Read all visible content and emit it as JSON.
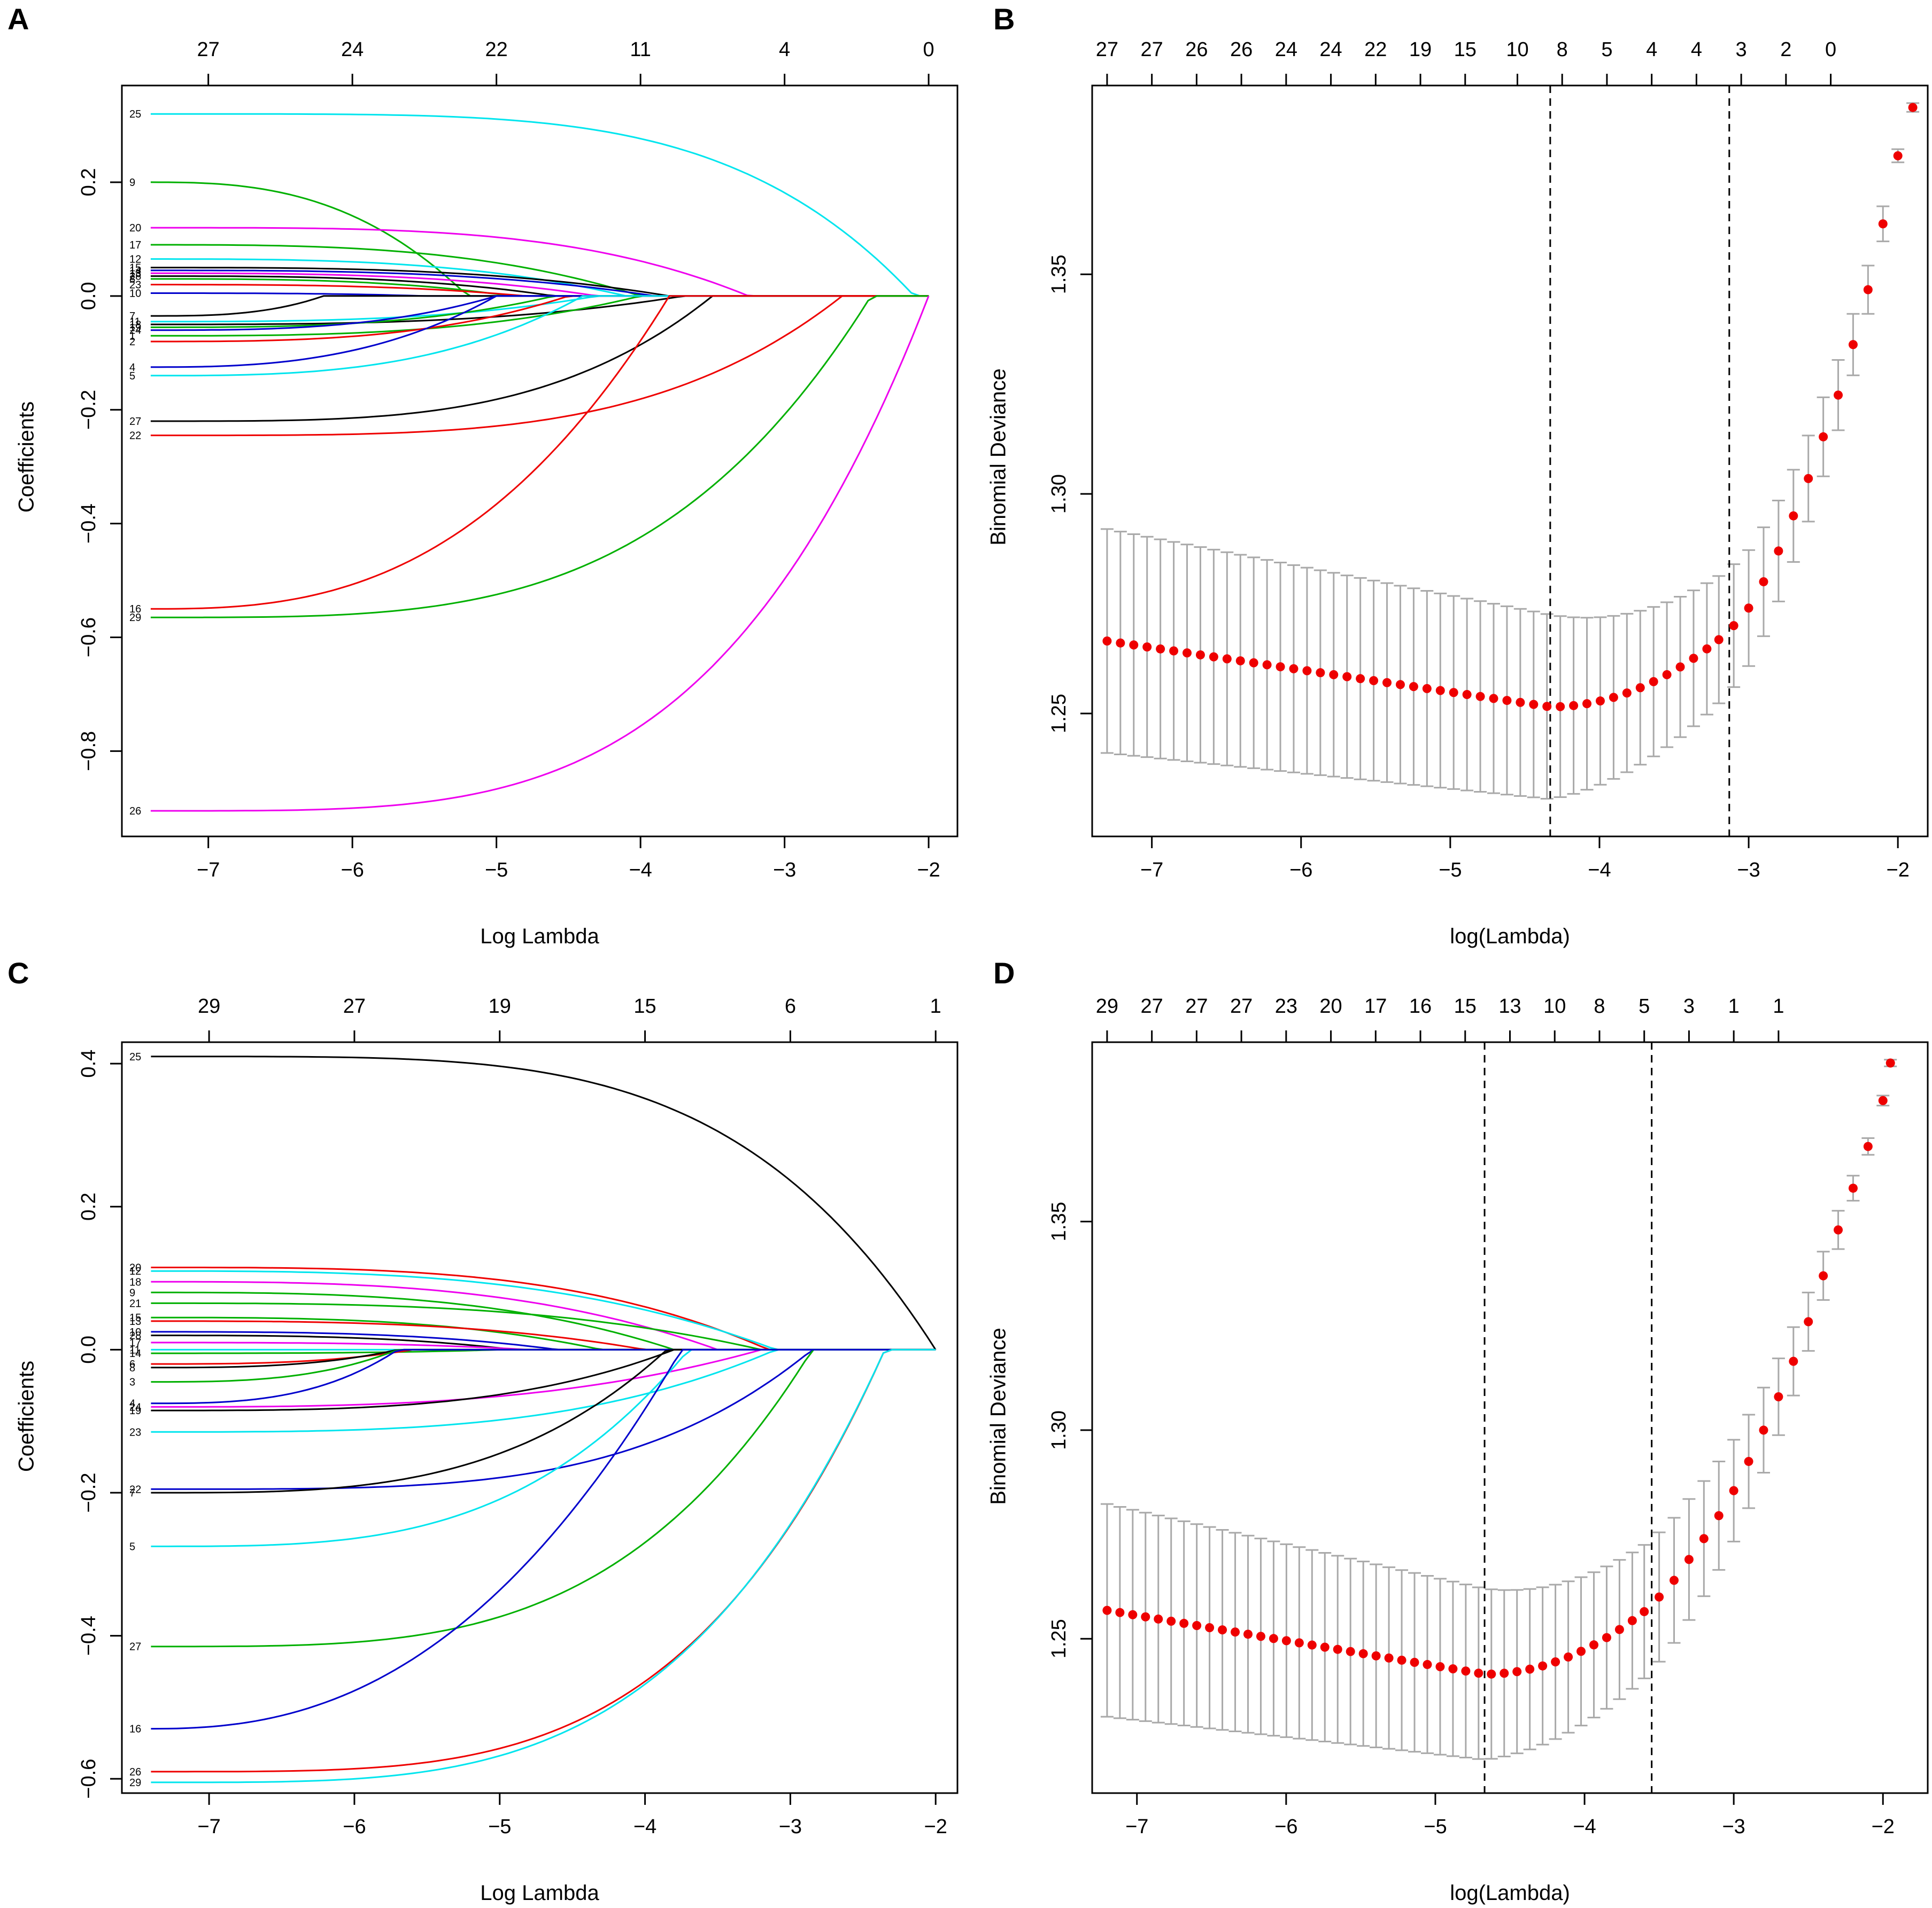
{
  "figure": {
    "background": "#ffffff"
  },
  "chart_data": [
    {
      "id": "A",
      "type": "line",
      "panel_label": "A",
      "xlabel": "Log Lambda",
      "ylabel": "Coefficients",
      "xlim": [
        -7.6,
        -1.8
      ],
      "ylim": [
        -0.95,
        0.37
      ],
      "x_ticks": [
        -7,
        -6,
        -5,
        -4,
        -3,
        -2
      ],
      "y_ticks": [
        -0.8,
        -0.6,
        -0.4,
        -0.2,
        0.0,
        0.2
      ],
      "y_tick_labels": [
        "−0.8",
        "−0.6",
        "−0.4",
        "−0.2",
        "0.0",
        "0.2"
      ],
      "top_axis": {
        "ticks": [
          -7,
          -6,
          -5,
          -4,
          -3,
          -2
        ],
        "labels": [
          "27",
          "24",
          "22",
          "11",
          "4",
          "0"
        ]
      },
      "x_start": -7.4,
      "series": [
        {
          "name": "25",
          "color": "#00e5ee",
          "start": 0.32,
          "zero_at": -2.1,
          "shape": 1.5
        },
        {
          "name": "9",
          "color": "#00b000",
          "start": 0.2,
          "zero_at": -5.2,
          "shape": 0.9
        },
        {
          "name": "20",
          "color": "#ee00ee",
          "start": 0.12,
          "zero_at": -3.25,
          "shape": 1.2
        },
        {
          "name": "17",
          "color": "#00b000",
          "start": 0.09,
          "zero_at": -4.0,
          "shape": 1.0
        },
        {
          "name": "12",
          "color": "#00e5ee",
          "start": 0.065,
          "zero_at": -4.1,
          "shape": 1.0
        },
        {
          "name": "15",
          "color": "#000000",
          "start": 0.05,
          "zero_at": -3.8,
          "shape": 1.0
        },
        {
          "name": "14",
          "color": "#0000cc",
          "start": 0.045,
          "zero_at": -3.9,
          "shape": 1.0
        },
        {
          "name": "13",
          "color": "#ee00ee",
          "start": 0.04,
          "zero_at": -4.3,
          "shape": 1.0
        },
        {
          "name": "28",
          "color": "#000000",
          "start": 0.035,
          "zero_at": -4.6,
          "shape": 1.0
        },
        {
          "name": "8",
          "color": "#00b000",
          "start": 0.03,
          "zero_at": -4.9,
          "shape": 1.0
        },
        {
          "name": "23",
          "color": "#ee0000",
          "start": 0.02,
          "zero_at": -4.8,
          "shape": 1.0
        },
        {
          "name": "10",
          "color": "#0000cc",
          "start": 0.005,
          "zero_at": -5.5,
          "shape": 1.0
        },
        {
          "name": "7",
          "color": "#000000",
          "start": -0.035,
          "zero_at": -6.2,
          "shape": 1.0
        },
        {
          "name": "11",
          "color": "#00e5ee",
          "start": -0.045,
          "zero_at": -4.3,
          "shape": 1.0
        },
        {
          "name": "18",
          "color": "#000000",
          "start": -0.05,
          "zero_at": -3.7,
          "shape": 1.0
        },
        {
          "name": "19",
          "color": "#00b000",
          "start": -0.055,
          "zero_at": -4.6,
          "shape": 1.0
        },
        {
          "name": "24",
          "color": "#0000cc",
          "start": -0.06,
          "zero_at": -5.0,
          "shape": 1.0
        },
        {
          "name": "1",
          "color": "#00b000",
          "start": -0.07,
          "zero_at": -4.0,
          "shape": 1.0
        },
        {
          "name": "2",
          "color": "#ee0000",
          "start": -0.08,
          "zero_at": -4.5,
          "shape": 1.0
        },
        {
          "name": "4",
          "color": "#0000cc",
          "start": -0.125,
          "zero_at": -5.0,
          "shape": 0.9
        },
        {
          "name": "5",
          "color": "#00e5ee",
          "start": -0.14,
          "zero_at": -4.4,
          "shape": 1.0
        },
        {
          "name": "27",
          "color": "#000000",
          "start": -0.22,
          "zero_at": -3.5,
          "shape": 1.2
        },
        {
          "name": "22",
          "color": "#ee0000",
          "start": -0.245,
          "zero_at": -2.6,
          "shape": 1.3
        },
        {
          "name": "16",
          "color": "#ee0000",
          "start": -0.55,
          "zero_at": -3.8,
          "shape": 0.9
        },
        {
          "name": "29",
          "color": "#00b000",
          "start": -0.565,
          "zero_at": -2.4,
          "shape": 1.2
        },
        {
          "name": "26",
          "color": "#ee00ee",
          "start": -0.905,
          "zero_at": -2.0,
          "shape": 1.3
        }
      ]
    },
    {
      "id": "B",
      "type": "scatter",
      "panel_label": "B",
      "xlabel": "log(Lambda)",
      "ylabel": "Binomial Deviance",
      "xlim": [
        -7.4,
        -1.8
      ],
      "ylim": [
        1.222,
        1.393
      ],
      "x_ticks": [
        -7,
        -6,
        -5,
        -4,
        -3,
        -2
      ],
      "y_ticks": [
        1.25,
        1.3,
        1.35
      ],
      "y_tick_labels": [
        "1.25",
        "1.30",
        "1.35"
      ],
      "top_axis": {
        "ticks": [
          -7.3,
          -7.0,
          -6.7,
          -6.4,
          -6.1,
          -5.8,
          -5.5,
          -5.2,
          -4.9,
          -4.55,
          -4.25,
          -3.95,
          -3.65,
          -3.35,
          -3.05,
          -2.75,
          -2.45
        ],
        "labels": [
          "27",
          "27",
          "26",
          "26",
          "24",
          "24",
          "22",
          "19",
          "15",
          "10",
          "8",
          "5",
          "4",
          "4",
          "3",
          "2",
          "0"
        ]
      },
      "lambda_min": -4.33,
      "lambda_1se": -3.13,
      "cv": {
        "x_start": -7.3,
        "x_end": -2.0,
        "n": 60,
        "mean_left": 1.2665,
        "mean_min": 1.2515,
        "sd_left": 0.0255,
        "sd_min": 0.021,
        "tail": [
          [
            -3.2,
            1.2668,
            0.0145
          ],
          [
            -3.1,
            1.27,
            0.014
          ],
          [
            -3.0,
            1.274,
            0.0132
          ],
          [
            -2.9,
            1.28,
            0.0124
          ],
          [
            -2.8,
            1.287,
            0.0115
          ],
          [
            -2.7,
            1.295,
            0.0105
          ],
          [
            -2.6,
            1.3035,
            0.0098
          ],
          [
            -2.5,
            1.313,
            0.009
          ],
          [
            -2.4,
            1.3225,
            0.008
          ],
          [
            -2.3,
            1.334,
            0.007
          ],
          [
            -2.2,
            1.3465,
            0.0055
          ],
          [
            -2.1,
            1.3615,
            0.004
          ],
          [
            -2.0,
            1.377,
            0.0015
          ],
          [
            -1.9,
            1.388,
            0.001
          ]
        ]
      }
    },
    {
      "id": "C",
      "type": "line",
      "panel_label": "C",
      "xlabel": "Log Lambda",
      "ylabel": "Coefficients",
      "xlim": [
        -7.6,
        -1.85
      ],
      "ylim": [
        -0.62,
        0.43
      ],
      "x_ticks": [
        -7,
        -6,
        -5,
        -4,
        -3,
        -2
      ],
      "y_ticks": [
        -0.6,
        -0.4,
        -0.2,
        0.0,
        0.2,
        0.4
      ],
      "y_tick_labels": [
        "−0.6",
        "−0.4",
        "−0.2",
        "0.0",
        "0.2",
        "0.4"
      ],
      "top_axis": {
        "ticks": [
          -7,
          -6,
          -5,
          -4,
          -3,
          -2
        ],
        "labels": [
          "29",
          "27",
          "19",
          "15",
          "6",
          "1"
        ]
      },
      "x_start": -7.4,
      "series": [
        {
          "name": "25",
          "color": "#000000",
          "start": 0.41,
          "zero_at": -2.0,
          "shape": 1.4
        },
        {
          "name": "20",
          "color": "#ee0000",
          "start": 0.115,
          "zero_at": -3.15,
          "shape": 1.1
        },
        {
          "name": "12",
          "color": "#00e5ee",
          "start": 0.11,
          "zero_at": -3.1,
          "shape": 1.0
        },
        {
          "name": "18",
          "color": "#ee00ee",
          "start": 0.095,
          "zero_at": -3.5,
          "shape": 1.0
        },
        {
          "name": "9",
          "color": "#00b000",
          "start": 0.08,
          "zero_at": -3.8,
          "shape": 1.0
        },
        {
          "name": "21",
          "color": "#00b000",
          "start": 0.065,
          "zero_at": -3.2,
          "shape": 1.0
        },
        {
          "name": "15",
          "color": "#00b000",
          "start": 0.045,
          "zero_at": -4.3,
          "shape": 1.0
        },
        {
          "name": "13",
          "color": "#ee0000",
          "start": 0.04,
          "zero_at": -4.0,
          "shape": 1.0
        },
        {
          "name": "10",
          "color": "#0000cc",
          "start": 0.025,
          "zero_at": -4.6,
          "shape": 1.0
        },
        {
          "name": "28",
          "color": "#000000",
          "start": 0.02,
          "zero_at": -4.9,
          "shape": 1.0
        },
        {
          "name": "17",
          "color": "#ee00ee",
          "start": 0.01,
          "zero_at": -4.8,
          "shape": 1.0
        },
        {
          "name": "11",
          "color": "#00e5ee",
          "start": 0.0,
          "zero_at": -4.5,
          "shape": 1.0
        },
        {
          "name": "14",
          "color": "#00b000",
          "start": -0.005,
          "zero_at": -5.0,
          "shape": 1.0
        },
        {
          "name": "6",
          "color": "#ee0000",
          "start": -0.02,
          "zero_at": -5.6,
          "shape": 1.0
        },
        {
          "name": "8",
          "color": "#000000",
          "start": -0.025,
          "zero_at": -5.7,
          "shape": 1.0
        },
        {
          "name": "3",
          "color": "#00b000",
          "start": -0.045,
          "zero_at": -5.7,
          "shape": 1.0
        },
        {
          "name": "4",
          "color": "#0000cc",
          "start": -0.075,
          "zero_at": -5.7,
          "shape": 1.0
        },
        {
          "name": "24",
          "color": "#ee00ee",
          "start": -0.08,
          "zero_at": -3.2,
          "shape": 1.0
        },
        {
          "name": "19",
          "color": "#000000",
          "start": -0.085,
          "zero_at": -3.8,
          "shape": 1.1
        },
        {
          "name": "23",
          "color": "#00e5ee",
          "start": -0.115,
          "zero_at": -3.1,
          "shape": 1.1
        },
        {
          "name": "22",
          "color": "#0000cc",
          "start": -0.195,
          "zero_at": -2.85,
          "shape": 1.3
        },
        {
          "name": "7",
          "color": "#000000",
          "start": -0.2,
          "zero_at": -3.85,
          "shape": 1.1
        },
        {
          "name": "5",
          "color": "#00e5ee",
          "start": -0.275,
          "zero_at": -3.7,
          "shape": 1.1
        },
        {
          "name": "27",
          "color": "#00b000",
          "start": -0.415,
          "zero_at": -2.85,
          "shape": 1.2
        },
        {
          "name": "16",
          "color": "#0000cc",
          "start": -0.53,
          "zero_at": -3.75,
          "shape": 0.8
        },
        {
          "name": "26",
          "color": "#ee0000",
          "start": -0.59,
          "zero_at": -2.35,
          "shape": 1.3
        },
        {
          "name": "29",
          "color": "#00e5ee",
          "start": -0.605,
          "zero_at": -2.35,
          "shape": 1.25
        }
      ]
    },
    {
      "id": "D",
      "type": "scatter",
      "panel_label": "D",
      "xlabel": "log(Lambda)",
      "ylabel": "Binomial Deviance",
      "xlim": [
        -7.3,
        -1.7
      ],
      "ylim": [
        1.213,
        1.393
      ],
      "x_ticks": [
        -7,
        -6,
        -5,
        -4,
        -3,
        -2
      ],
      "y_ticks": [
        1.25,
        1.3,
        1.35
      ],
      "y_tick_labels": [
        "1.25",
        "1.30",
        "1.35"
      ],
      "top_axis": {
        "ticks": [
          -7.2,
          -6.9,
          -6.6,
          -6.3,
          -6.0,
          -5.7,
          -5.4,
          -5.1,
          -4.8,
          -4.5,
          -4.2,
          -3.9,
          -3.6,
          -3.3,
          -3.0,
          -2.7
        ],
        "labels": [
          "29",
          "27",
          "27",
          "27",
          "23",
          "20",
          "17",
          "16",
          "15",
          "13",
          "10",
          "8",
          "5",
          "3",
          "1",
          "1"
        ]
      },
      "lambda_min": -4.67,
      "lambda_1se": -3.55,
      "cv": {
        "x_start": -7.2,
        "x_end": -1.98,
        "n": 60,
        "mean_left": 1.2568,
        "mean_min": 1.2415,
        "sd_left": 0.0255,
        "sd_min": 0.0205,
        "tail": [
          [
            -3.6,
            1.2565,
            0.016
          ],
          [
            -3.5,
            1.26,
            0.0155
          ],
          [
            -3.4,
            1.264,
            0.015
          ],
          [
            -3.3,
            1.269,
            0.0145
          ],
          [
            -3.2,
            1.274,
            0.0138
          ],
          [
            -3.1,
            1.2795,
            0.013
          ],
          [
            -3.0,
            1.2855,
            0.0122
          ],
          [
            -2.9,
            1.2925,
            0.0112
          ],
          [
            -2.8,
            1.3,
            0.0102
          ],
          [
            -2.7,
            1.308,
            0.0092
          ],
          [
            -2.6,
            1.3165,
            0.0082
          ],
          [
            -2.5,
            1.326,
            0.007
          ],
          [
            -2.4,
            1.337,
            0.0058
          ],
          [
            -2.3,
            1.348,
            0.0046
          ],
          [
            -2.2,
            1.358,
            0.003
          ],
          [
            -2.1,
            1.368,
            0.002
          ],
          [
            -2.0,
            1.379,
            0.0012
          ],
          [
            -1.95,
            1.388,
            0.0008
          ]
        ]
      }
    }
  ]
}
